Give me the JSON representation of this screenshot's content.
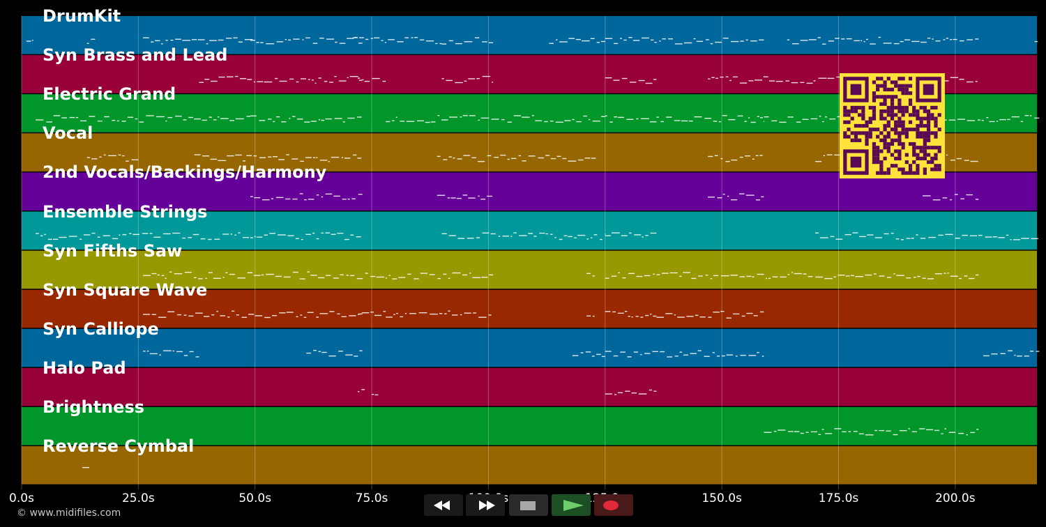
{
  "tracks": [
    {
      "label": "DrumKit",
      "color": "#00679c"
    },
    {
      "label": "Syn Brass and Lead",
      "color": "#98003a"
    },
    {
      "label": "Electric Grand",
      "color": "#00962a"
    },
    {
      "label": "Vocal",
      "color": "#966600"
    },
    {
      "label": "2nd Vocals/Backings/Harmony",
      "color": "#650098"
    },
    {
      "label": "Ensemble Strings",
      "color": "#009898"
    },
    {
      "label": "Syn Fifths Saw",
      "color": "#989800"
    },
    {
      "label": "Syn Square Wave",
      "color": "#982800"
    },
    {
      "label": "Syn Calliope",
      "color": "#00679c"
    },
    {
      "label": "Halo Pad",
      "color": "#98003a"
    },
    {
      "label": "Brightness",
      "color": "#00962a"
    },
    {
      "label": "Reverse Cymbal",
      "color": "#966600"
    }
  ],
  "time_axis": {
    "ticks": [
      {
        "value": 0,
        "label": "0.0s"
      },
      {
        "value": 25,
        "label": "25.0s"
      },
      {
        "value": 50,
        "label": "50.0s"
      },
      {
        "value": 75,
        "label": "75.0s"
      },
      {
        "value": 100,
        "label": "100.0s"
      },
      {
        "value": 125,
        "label": "125.0s"
      },
      {
        "value": 150,
        "label": "150.0s"
      },
      {
        "value": 175,
        "label": "175.0s"
      },
      {
        "value": 200,
        "label": "200.0s"
      }
    ],
    "end_seconds": 217.5
  },
  "notes": {
    "DrumKit": [
      [
        1,
        2.5
      ],
      [
        14,
        16
      ],
      [
        26,
        50
      ],
      [
        49,
        73
      ],
      [
        71,
        90
      ],
      [
        90,
        101
      ],
      [
        113,
        125
      ],
      [
        125,
        159
      ],
      [
        164,
        205
      ],
      [
        217,
        218
      ]
    ],
    "Syn Brass and Lead": [
      [
        38,
        73
      ],
      [
        72,
        78
      ],
      [
        90,
        101
      ],
      [
        125,
        136
      ],
      [
        147,
        205
      ]
    ],
    "Electric Grand": [
      [
        3,
        49
      ],
      [
        49,
        73
      ],
      [
        78,
        125
      ],
      [
        125,
        136
      ],
      [
        136,
        159
      ],
      [
        159,
        218
      ]
    ],
    "Vocal": [
      [
        14,
        25
      ],
      [
        37,
        73
      ],
      [
        89,
        123
      ],
      [
        147,
        159
      ],
      [
        170,
        205
      ]
    ],
    "2nd Vocals/Backings/Harmony": [
      [
        49,
        73
      ],
      [
        89,
        101
      ],
      [
        147,
        159
      ],
      [
        193,
        205
      ]
    ],
    "Ensemble Strings": [
      [
        3,
        73
      ],
      [
        90,
        125
      ],
      [
        125,
        136
      ],
      [
        170,
        218
      ]
    ],
    "Syn Fifths Saw": [
      [
        26,
        101
      ],
      [
        121,
        123
      ],
      [
        125,
        136
      ],
      [
        136,
        205
      ]
    ],
    "Syn Square Wave": [
      [
        26,
        73
      ],
      [
        72,
        78
      ],
      [
        78,
        101
      ],
      [
        121,
        123
      ],
      [
        125,
        136
      ],
      [
        136,
        159
      ]
    ],
    "Syn Calliope": [
      [
        26,
        38
      ],
      [
        61,
        73
      ],
      [
        118,
        125
      ],
      [
        125,
        159
      ],
      [
        206,
        218
      ]
    ],
    "Halo Pad": [
      [
        72,
        73.5
      ],
      [
        75,
        76.5
      ],
      [
        125,
        136
      ]
    ],
    "Brightness": [
      [
        159,
        205
      ]
    ],
    "Reverse Cymbal": [
      [
        13,
        14.5
      ]
    ]
  },
  "transport": {
    "rewind_icon": "rewind-icon",
    "fast_forward_icon": "fast-forward-icon",
    "stop_icon": "stop-icon",
    "play_icon": "play-icon",
    "record_icon": "record-icon"
  },
  "copyright": "© www.midifiles.com"
}
